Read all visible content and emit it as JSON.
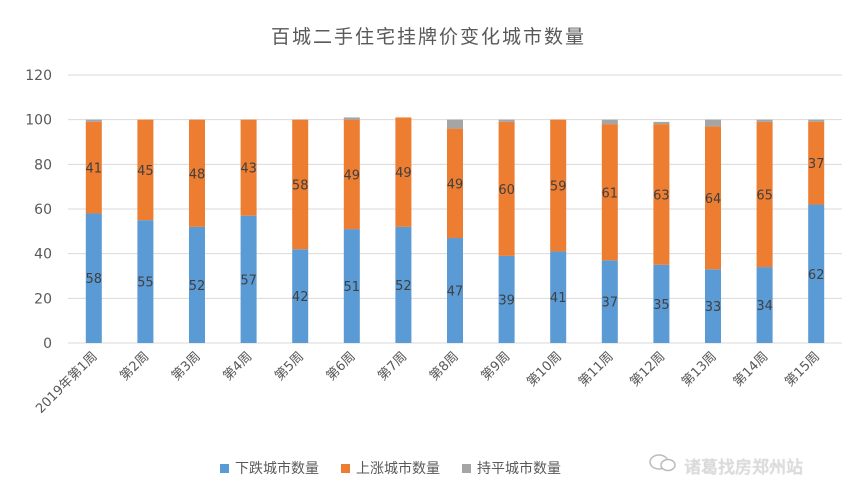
{
  "chart_data": {
    "type": "bar",
    "stacked": true,
    "title": "百城二手住宅挂牌价变化城市数量",
    "categories": [
      "2019年第1周",
      "第2周",
      "第3周",
      "第4周",
      "第5周",
      "第6周",
      "第7周",
      "第8周",
      "第9周",
      "第10周",
      "第11周",
      "第12周",
      "第13周",
      "第14周",
      "第15周"
    ],
    "series": [
      {
        "name": "下跌城市数量",
        "color": "#5b9bd5",
        "values": [
          58,
          55,
          52,
          57,
          42,
          51,
          52,
          47,
          39,
          41,
          37,
          35,
          33,
          34,
          62
        ],
        "labels": true
      },
      {
        "name": "上涨城市数量",
        "color": "#ed7d31",
        "values": [
          41,
          45,
          48,
          43,
          58,
          49,
          49,
          49,
          60,
          59,
          61,
          63,
          64,
          65,
          37
        ],
        "labels": true
      },
      {
        "name": "持平城市数量",
        "color": "#a5a5a5",
        "values": [
          1,
          0,
          0,
          0,
          0,
          1,
          0,
          4,
          1,
          0,
          2,
          1,
          3,
          1,
          1
        ],
        "labels": false
      }
    ],
    "ylim": [
      0,
      120
    ],
    "yticks": [
      0,
      20,
      40,
      60,
      80,
      100,
      120
    ],
    "grid": true,
    "legend_position": "bottom"
  },
  "watermark": {
    "text": "诸葛找房郑州站",
    "icon": "wechat-icon"
  }
}
